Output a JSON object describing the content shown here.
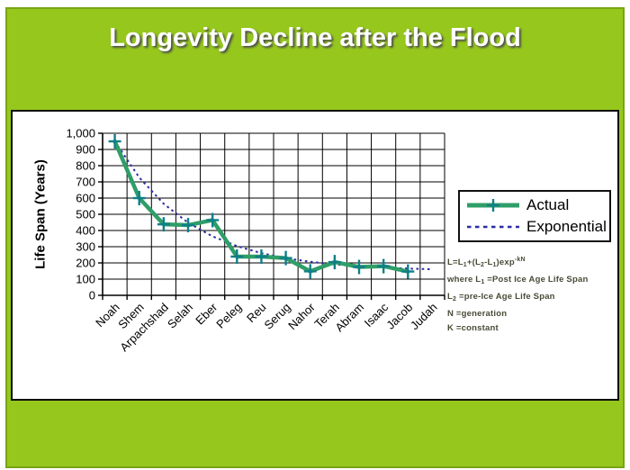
{
  "slide": {
    "title": "Longevity Decline after the Flood",
    "background_color": "#96C71D",
    "border_color": "#79A414",
    "title_color": "#FFFFFF"
  },
  "chart_data": {
    "type": "line",
    "title": "Longevity Decline after the Flood",
    "xlabel": "",
    "ylabel": "Life Span (Years)",
    "ylim": [
      0,
      1000
    ],
    "ytick_interval": 100,
    "ytick_labels": [
      "0",
      "100",
      "200",
      "300",
      "400",
      "500",
      "600",
      "700",
      "800",
      "900",
      "1,000"
    ],
    "grid": true,
    "grid_color": "#000000",
    "legend_position": "right-inside",
    "categories": [
      "Noah",
      "Shem",
      "Arpachshad",
      "Selah",
      "Eber",
      "Peleg",
      "Reu",
      "Serug",
      "Nahor",
      "Terah",
      "Abram",
      "Isaac",
      "Jacob",
      "Judah"
    ],
    "series": [
      {
        "name": "Actual",
        "style": "solid",
        "marker": "plus",
        "color": "#2F9E68",
        "marker_color": "#0F7F88",
        "values": [
          950,
          600,
          438,
          433,
          464,
          239,
          239,
          230,
          148,
          205,
          175,
          180,
          147,
          null
        ]
      },
      {
        "name": "Exponential",
        "style": "dotted",
        "color": "#2B2BA3",
        "values": [
          950,
          727,
          565,
          448,
          364,
          304,
          260,
          229,
          207,
          191,
          179,
          171,
          165,
          161
        ]
      }
    ]
  },
  "formula": {
    "lines": [
      {
        "segments": [
          {
            "text": "L=L"
          },
          {
            "text": "1",
            "script": "sub"
          },
          {
            "text": "+(L"
          },
          {
            "text": "2",
            "script": "sub"
          },
          {
            "text": "-L"
          },
          {
            "text": "1",
            "script": "sub"
          },
          {
            "text": ")exp"
          },
          {
            "text": "-kN",
            "script": "sup"
          }
        ]
      },
      {
        "segments": [
          {
            "text": "where L"
          },
          {
            "text": "1",
            "script": "sub"
          },
          {
            "text": " =Post Ice Age Life Span"
          }
        ]
      },
      {
        "segments": [
          {
            "text": "L"
          },
          {
            "text": "2",
            "script": "sub"
          },
          {
            "text": " =pre-Ice Age Life Span"
          }
        ]
      },
      {
        "segments": [
          {
            "text": "N =generation"
          }
        ]
      },
      {
        "segments": [
          {
            "text": "K =constant"
          }
        ]
      }
    ]
  }
}
